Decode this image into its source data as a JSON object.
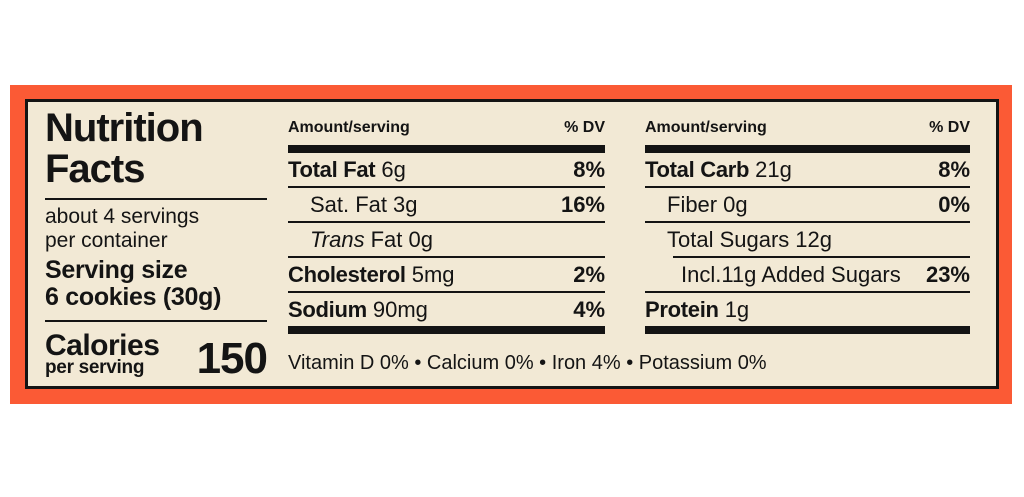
{
  "colors": {
    "frame_orange": "#fb5a35",
    "panel_cream": "#f2e9d5",
    "ink_black": "#141414"
  },
  "label": {
    "title_line1": "Nutrition",
    "title_line2": "Facts",
    "servings_per_container_line1": "about 4 servings",
    "servings_per_container_line2": "per container",
    "serving_size_label": "Serving size",
    "serving_size_value": "6 cookies (30g)",
    "calories_label": "Calories",
    "calories_sublabel": "per serving",
    "calories_value": "150"
  },
  "columns": [
    {
      "amount_header": "Amount/serving",
      "dv_header": "% DV",
      "rows": [
        {
          "name": "Total Fat",
          "value": "6g",
          "dv": "8%"
        },
        {
          "name": "Sat. Fat",
          "value": "3g",
          "dv": "16%"
        },
        {
          "name": "Trans",
          "value": "Fat 0g",
          "dv": ""
        },
        {
          "name": "Cholesterol",
          "value": "5mg",
          "dv": "2%"
        },
        {
          "name": "Sodium",
          "value": "90mg",
          "dv": "4%"
        }
      ]
    },
    {
      "amount_header": "Amount/serving",
      "dv_header": "% DV",
      "rows": [
        {
          "name": "Total Carb",
          "value": "21g",
          "dv": "8%"
        },
        {
          "name": "Fiber",
          "value": "0g",
          "dv": "0%"
        },
        {
          "name": "Total Sugars",
          "value": "12g",
          "dv": ""
        },
        {
          "name": "Incl.11g Added Sugars",
          "value": "",
          "dv": "23%"
        },
        {
          "name": "Protein",
          "value": "1g",
          "dv": ""
        }
      ]
    }
  ],
  "footnote": "Vitamin D 0% • Calcium 0% • Iron 4% • Potassium 0%"
}
